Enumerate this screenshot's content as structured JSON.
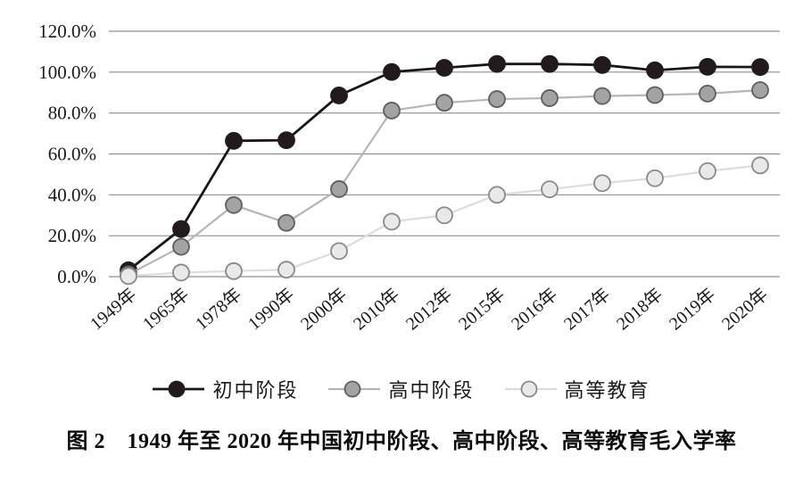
{
  "figure": {
    "caption": "图 2　1949 年至 2020 年中国初中阶段、高中阶段、高等教育毛入学率"
  },
  "chart_data": {
    "type": "line",
    "title": "",
    "xlabel": "",
    "ylabel": "",
    "categories": [
      "1949年",
      "1965年",
      "1978年",
      "1990年",
      "2000年",
      "2010年",
      "2012年",
      "2015年",
      "2016年",
      "2017年",
      "2018年",
      "2019年",
      "2020年"
    ],
    "series": [
      {
        "name": "初中阶段",
        "slug": "junior-secondary",
        "values": [
          3.1,
          23.3,
          66.4,
          66.7,
          88.6,
          100.1,
          102.1,
          104.0,
          104.0,
          103.5,
          100.9,
          102.6,
          102.5
        ],
        "line_color": "#1c1518",
        "line_width": 2.8,
        "marker_fill": "#221a1c",
        "marker_stroke": "#221a1c"
      },
      {
        "name": "高中阶段",
        "slug": "senior-secondary",
        "values": [
          1.1,
          14.6,
          35.0,
          26.3,
          42.8,
          81.2,
          85.0,
          86.8,
          87.3,
          88.3,
          88.8,
          89.5,
          91.2
        ],
        "line_color": "#b5b5b5",
        "line_width": 2.2,
        "marker_fill": "#a3a3a3",
        "marker_stroke": "#5f5f5f"
      },
      {
        "name": "高等教育",
        "slug": "higher-education",
        "values": [
          0.3,
          2.0,
          2.7,
          3.4,
          12.5,
          26.9,
          30.0,
          40.0,
          42.7,
          45.7,
          48.1,
          51.6,
          54.4
        ],
        "line_color": "#dcdcdc",
        "line_width": 2.2,
        "marker_fill": "#e9e9e9",
        "marker_stroke": "#8a8a8a"
      }
    ],
    "ylim": [
      0,
      120
    ],
    "ytick_step": 20,
    "ytick_labels": [
      "0.0%",
      "20.0%",
      "40.0%",
      "60.0%",
      "80.0%",
      "100.0%",
      "120.0%"
    ],
    "grid": true,
    "gridline_color": "#8f8f8f",
    "legend_position": "bottom"
  }
}
